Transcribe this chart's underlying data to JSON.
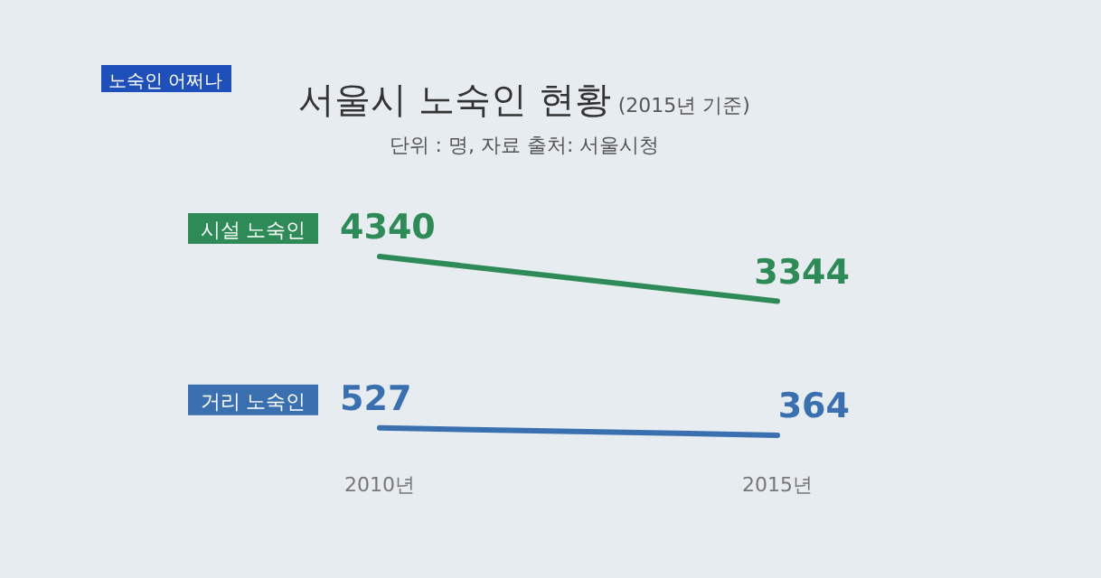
{
  "chart_data": {
    "type": "line",
    "title": "서울시 노숙인 현황",
    "subtitle": "(2015년 기준)",
    "annotations": [
      "단위 : 명,  자료 출처: 서울시청",
      "노숙인 어쩌나"
    ],
    "categories": [
      "2010년",
      "2015년"
    ],
    "series": [
      {
        "name": "시설 노숙인",
        "color": "#2e8b57",
        "values": [
          4340,
          3344
        ]
      },
      {
        "name": "거리 노숙인",
        "color": "#3a6fb0",
        "values": [
          527,
          364
        ]
      }
    ],
    "data_labels": true
  }
}
